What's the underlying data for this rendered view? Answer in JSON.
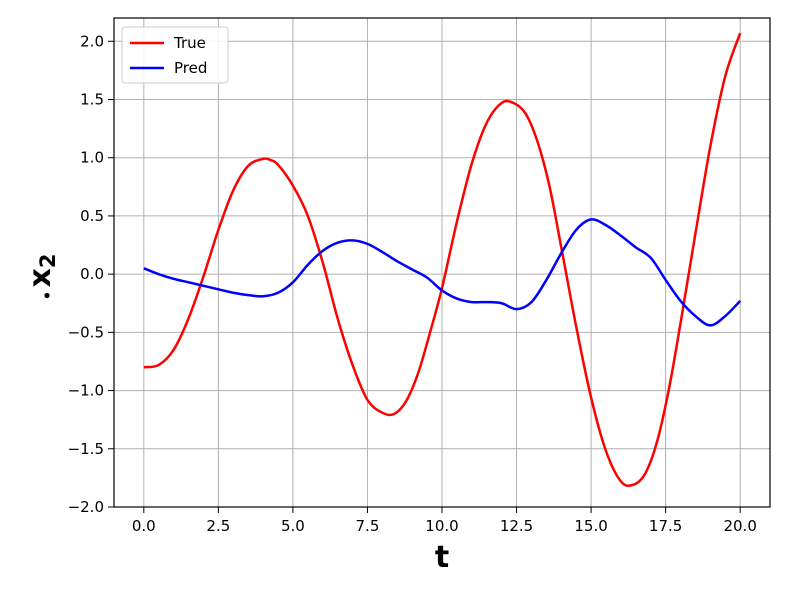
{
  "chart_data": {
    "type": "line",
    "xlabel": "t",
    "ylabel_base": "x",
    "ylabel_sub": "2",
    "ylabel_accent": "dot",
    "xlim": [
      -1.0,
      21.0
    ],
    "ylim": [
      -2.0,
      2.2
    ],
    "xticks": [
      0.0,
      2.5,
      5.0,
      7.5,
      10.0,
      12.5,
      15.0,
      17.5,
      20.0
    ],
    "xtick_labels": [
      "0.0",
      "2.5",
      "5.0",
      "7.5",
      "10.0",
      "12.5",
      "15.0",
      "17.5",
      "20.0"
    ],
    "yticks": [
      -2.0,
      -1.5,
      -1.0,
      -0.5,
      0.0,
      0.5,
      1.0,
      1.5,
      2.0
    ],
    "ytick_labels": [
      "−2.0",
      "−1.5",
      "−1.0",
      "−0.5",
      "0.0",
      "0.5",
      "1.0",
      "1.5",
      "2.0"
    ],
    "grid": true,
    "legend_position": "top-left",
    "series": [
      {
        "name": "True",
        "color": "#ff0000",
        "x": [
          0,
          0.5,
          1,
          1.5,
          2,
          2.5,
          3,
          3.5,
          4,
          4.25,
          4.5,
          5,
          5.5,
          6,
          6.5,
          7,
          7.5,
          8,
          8.4,
          8.8,
          9.2,
          9.6,
          10,
          10.5,
          11,
          11.5,
          12,
          12.4,
          12.8,
          13.2,
          13.6,
          14,
          14.5,
          15,
          15.5,
          16,
          16.4,
          16.8,
          17.2,
          17.6,
          18,
          18.5,
          19,
          19.5,
          20
        ],
        "y": [
          -0.8,
          -0.78,
          -0.65,
          -0.38,
          -0.02,
          0.38,
          0.72,
          0.93,
          0.99,
          0.98,
          0.94,
          0.76,
          0.5,
          0.1,
          -0.38,
          -0.78,
          -1.08,
          -1.19,
          -1.2,
          -1.09,
          -0.85,
          -0.5,
          -0.12,
          0.45,
          0.95,
          1.3,
          1.47,
          1.47,
          1.38,
          1.14,
          0.76,
          0.23,
          -0.45,
          -1.06,
          -1.52,
          -1.78,
          -1.81,
          -1.72,
          -1.45,
          -1.0,
          -0.42,
          0.35,
          1.1,
          1.7,
          2.07
        ]
      },
      {
        "name": "Pred",
        "color": "#0000ff",
        "x": [
          0,
          0.5,
          1,
          1.5,
          2,
          2.5,
          3,
          3.5,
          4,
          4.5,
          5,
          5.5,
          6,
          6.5,
          7,
          7.5,
          8,
          8.5,
          9,
          9.5,
          10,
          10.5,
          11,
          11.5,
          12,
          12.5,
          13,
          13.5,
          14,
          14.5,
          15,
          15.5,
          16,
          16.5,
          17,
          17.5,
          18,
          18.5,
          19,
          19.5,
          20
        ],
        "y": [
          0.05,
          0.0,
          -0.04,
          -0.07,
          -0.1,
          -0.13,
          -0.16,
          -0.18,
          -0.19,
          -0.16,
          -0.07,
          0.08,
          0.2,
          0.27,
          0.29,
          0.26,
          0.19,
          0.11,
          0.04,
          -0.03,
          -0.14,
          -0.21,
          -0.24,
          -0.24,
          -0.25,
          -0.3,
          -0.24,
          -0.05,
          0.18,
          0.38,
          0.47,
          0.42,
          0.33,
          0.23,
          0.14,
          -0.05,
          -0.23,
          -0.36,
          -0.44,
          -0.36,
          -0.23
        ]
      }
    ]
  }
}
